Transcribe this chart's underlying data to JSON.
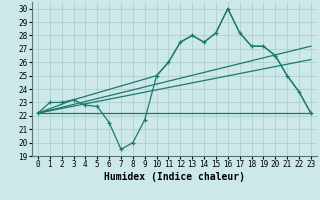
{
  "xlabel": "Humidex (Indice chaleur)",
  "ylabel": "",
  "xlim": [
    -0.5,
    23.5
  ],
  "ylim": [
    19,
    30.5
  ],
  "yticks": [
    19,
    20,
    21,
    22,
    23,
    24,
    25,
    26,
    27,
    28,
    29,
    30
  ],
  "xticks": [
    0,
    1,
    2,
    3,
    4,
    5,
    6,
    7,
    8,
    9,
    10,
    11,
    12,
    13,
    14,
    15,
    16,
    17,
    18,
    19,
    20,
    21,
    22,
    23
  ],
  "bg_color": "#cce8e8",
  "grid_color": "#aacccc",
  "line_color": "#1a7a6e",
  "series_main": {
    "x": [
      0,
      1,
      2,
      3,
      4,
      5,
      6,
      7,
      8,
      9,
      10,
      11,
      12,
      13,
      14,
      15,
      16,
      17,
      18,
      19,
      20,
      21,
      22,
      23
    ],
    "y": [
      22.2,
      23.0,
      23.0,
      23.2,
      22.8,
      22.7,
      21.5,
      19.5,
      20.0,
      21.7,
      25.0,
      26.0,
      27.5,
      28.0,
      27.5,
      28.2,
      30.0,
      28.2,
      27.2,
      27.2,
      26.5,
      25.0,
      23.8,
      22.2
    ]
  },
  "series_flat": {
    "x": [
      0,
      14,
      23
    ],
    "y": [
      22.2,
      22.2,
      22.2
    ]
  },
  "series_upper": {
    "x": [
      0,
      3,
      10,
      11,
      12,
      13,
      14,
      15,
      16,
      17,
      18,
      19,
      20,
      21,
      22,
      23
    ],
    "y": [
      22.2,
      23.2,
      25.0,
      26.0,
      27.5,
      28.0,
      27.5,
      28.2,
      30.0,
      28.2,
      27.2,
      27.2,
      26.5,
      25.0,
      23.8,
      22.2
    ]
  },
  "trend1": {
    "x": [
      0,
      23
    ],
    "y": [
      22.2,
      27.2
    ]
  },
  "trend2": {
    "x": [
      0,
      23
    ],
    "y": [
      22.2,
      26.2
    ]
  }
}
